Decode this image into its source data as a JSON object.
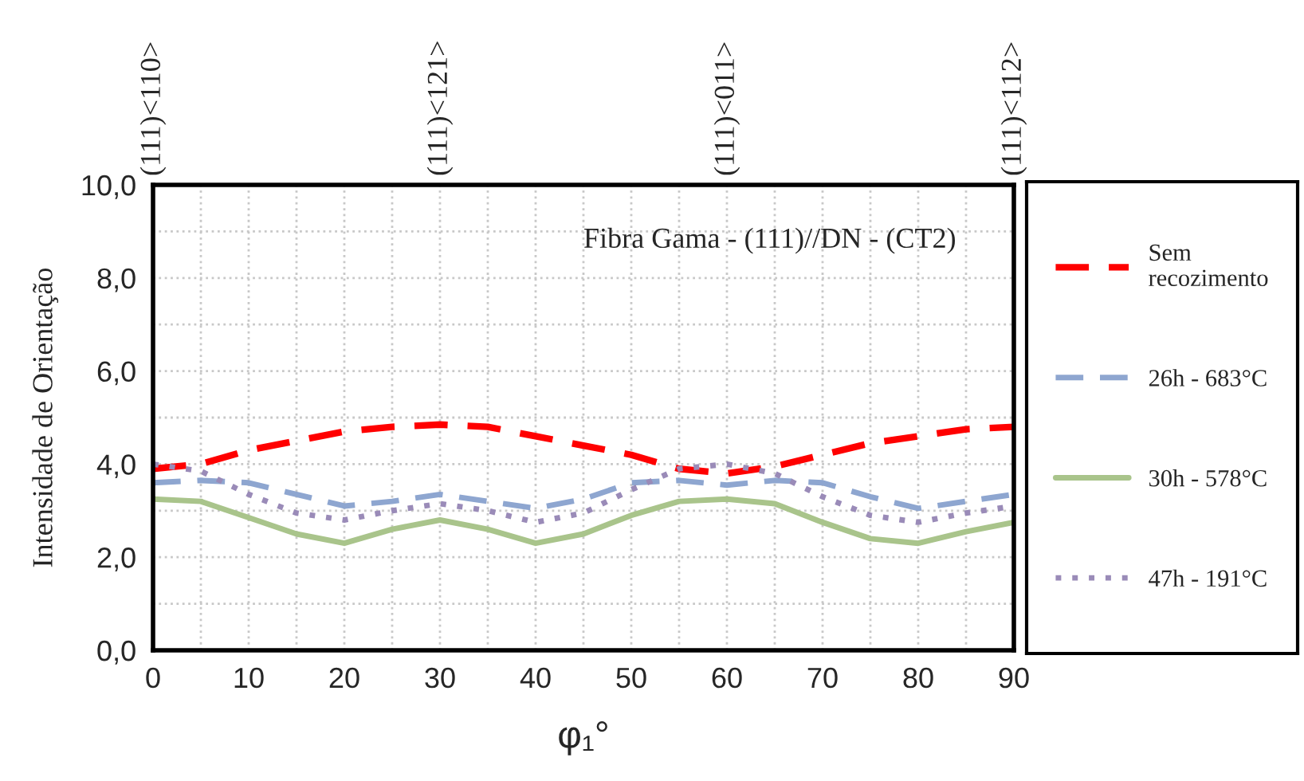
{
  "chart_data": {
    "type": "line",
    "title": "Fibra Gama - (111)//DN - (CT2)",
    "xlabel": "φ₁°",
    "ylabel": "Intensidade de Orientação",
    "x": [
      0,
      5,
      10,
      15,
      20,
      25,
      30,
      35,
      40,
      45,
      50,
      55,
      60,
      65,
      70,
      75,
      80,
      85,
      90
    ],
    "series": [
      {
        "name": "Sem\nrecozimento",
        "color": "#ff0000",
        "line_style": "dashed",
        "values": [
          3.9,
          4.0,
          4.3,
          4.5,
          4.7,
          4.8,
          4.85,
          4.8,
          4.6,
          4.4,
          4.2,
          3.9,
          3.8,
          3.95,
          4.2,
          4.45,
          4.6,
          4.75,
          4.8
        ]
      },
      {
        "name": "26h - 683°C",
        "color": "#8ea6d0",
        "line_style": "dashed",
        "values": [
          3.6,
          3.65,
          3.6,
          3.35,
          3.1,
          3.2,
          3.35,
          3.2,
          3.05,
          3.25,
          3.6,
          3.65,
          3.55,
          3.65,
          3.6,
          3.3,
          3.05,
          3.2,
          3.35
        ]
      },
      {
        "name": "30h - 578°C",
        "color": "#a9c48b",
        "line_style": "solid",
        "values": [
          3.25,
          3.2,
          2.85,
          2.5,
          2.3,
          2.6,
          2.8,
          2.6,
          2.3,
          2.5,
          2.9,
          3.2,
          3.25,
          3.15,
          2.75,
          2.4,
          2.3,
          2.55,
          2.75
        ]
      },
      {
        "name": "47h - 191°C",
        "color": "#9a8bb8",
        "line_style": "dotted",
        "values": [
          4.0,
          3.85,
          3.35,
          2.95,
          2.8,
          3.0,
          3.15,
          3.0,
          2.75,
          2.95,
          3.45,
          3.9,
          4.0,
          3.8,
          3.3,
          2.9,
          2.75,
          2.95,
          3.1
        ]
      }
    ],
    "xlim": [
      0,
      90
    ],
    "xticks": [
      0,
      10,
      20,
      30,
      40,
      50,
      60,
      70,
      80,
      90
    ],
    "ylim": [
      0,
      10
    ],
    "yticks": [
      {
        "value": 0,
        "label": "0,0"
      },
      {
        "value": 2,
        "label": "2,0"
      },
      {
        "value": 4,
        "label": "4,0"
      },
      {
        "value": 6,
        "label": "6,0"
      },
      {
        "value": 8,
        "label": "8,0"
      },
      {
        "value": 10,
        "label": "10,0"
      }
    ],
    "annotations": [
      "(111)<110>",
      "(111)<121>",
      "(111)<011>",
      "(111)<112>"
    ],
    "grid": true,
    "legend": "right",
    "marker": "none"
  }
}
